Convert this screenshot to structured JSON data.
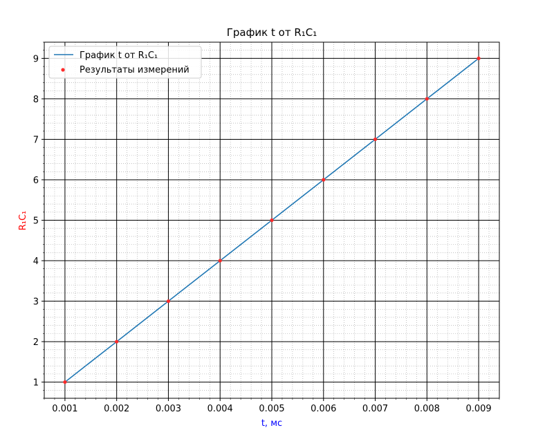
{
  "chart_data": {
    "type": "line",
    "title": "График t от R₁C₁",
    "xlabel": "t, мс",
    "ylabel": "R₁C₁",
    "xlabel_color": "#0000ff",
    "ylabel_color": "#ff0000",
    "x": [
      0.001,
      0.002,
      0.003,
      0.004,
      0.005,
      0.006,
      0.007,
      0.008,
      0.009
    ],
    "series": [
      {
        "name": "График t от R₁C₁",
        "kind": "line",
        "color": "#1f77b4",
        "values": [
          1,
          2,
          3,
          4,
          5,
          6,
          7,
          8,
          9
        ]
      },
      {
        "name": "Результаты измерений",
        "kind": "scatter",
        "color": "#ff2a2a",
        "values": [
          1,
          2,
          3,
          4,
          5,
          6,
          7,
          8,
          9
        ]
      }
    ],
    "xlim": [
      0.0006,
      0.0094
    ],
    "ylim": [
      0.6,
      9.4
    ],
    "xticks": [
      0.001,
      0.002,
      0.003,
      0.004,
      0.005,
      0.006,
      0.007,
      0.008,
      0.009
    ],
    "xtick_labels": [
      "0.001",
      "0.002",
      "0.003",
      "0.004",
      "0.005",
      "0.006",
      "0.007",
      "0.008",
      "0.009"
    ],
    "yticks": [
      1,
      2,
      3,
      4,
      5,
      6,
      7,
      8,
      9
    ],
    "ytick_labels": [
      "1",
      "2",
      "3",
      "4",
      "5",
      "6",
      "7",
      "8",
      "9"
    ],
    "grid": "major solid black, minor dotted gray",
    "legend_position": "top-left"
  }
}
